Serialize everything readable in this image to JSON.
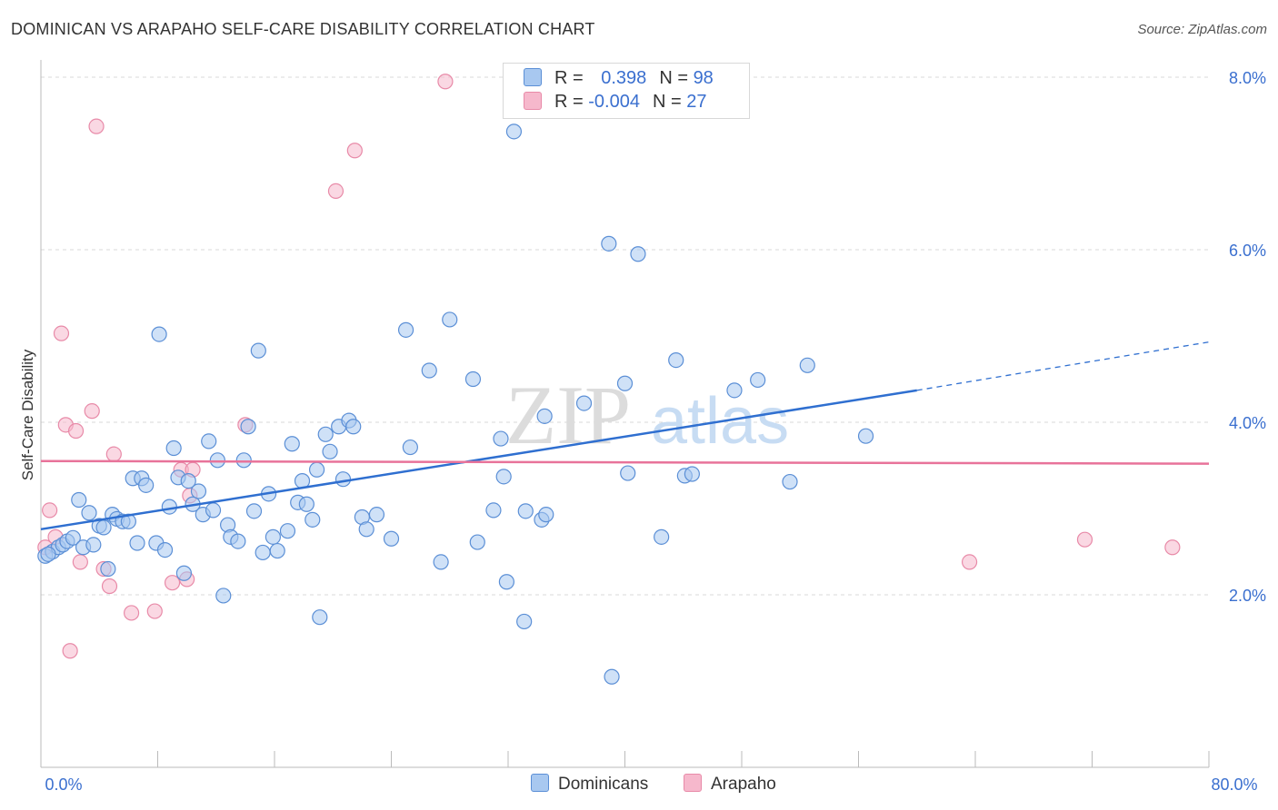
{
  "header": {
    "title": "DOMINICAN VS ARAPAHO SELF-CARE DISABILITY CORRELATION CHART",
    "source": "Source: ZipAtlas.com"
  },
  "watermark": {
    "part1": "ZIP",
    "part2": "atlas"
  },
  "legend": {
    "rows": [
      {
        "r_label": "R = ",
        "r_value": "0.398",
        "n_label": "N = ",
        "n_value": "98",
        "color": "#a8c8f0"
      },
      {
        "r_label": "R = ",
        "r_value": "-0.004",
        "n_label": "N = ",
        "n_value": "27",
        "color": "#f6b8cc"
      }
    ]
  },
  "bottom_legend": {
    "items": [
      {
        "label": "Dominicans",
        "color": "#a8c8f0"
      },
      {
        "label": "Arapaho",
        "color": "#f6b8cc"
      }
    ]
  },
  "colors": {
    "blue_fill": "#a8c8f0",
    "blue_stroke": "#5b8fd6",
    "blue_line": "#2f6fd0",
    "pink_fill": "#f6b8cc",
    "pink_stroke": "#e88aa8",
    "pink_line": "#e8739a",
    "axis_text": "#3a6fcf",
    "grid": "#d9d9d9"
  },
  "chart_data": {
    "type": "scatter",
    "title": "DOMINICAN VS ARAPAHO SELF-CARE DISABILITY CORRELATION CHART",
    "xlabel": "",
    "ylabel": "Self-Care Disability",
    "xlim": [
      0,
      80
    ],
    "ylim": [
      0,
      8.2
    ],
    "x_tick_labels": [
      "0.0%",
      "80.0%"
    ],
    "y_ticks": [
      2,
      4,
      6,
      8
    ],
    "y_tick_labels": [
      "2.0%",
      "4.0%",
      "6.0%",
      "8.0%"
    ],
    "series": [
      {
        "name": "Dominicans",
        "r": 0.398,
        "n": 98,
        "trend": {
          "x0": 0,
          "y0": 2.76,
          "x1": 60,
          "y1": 4.37,
          "dashed_to_x": 80,
          "dashed_to_y": 4.93
        },
        "points": [
          [
            0.3,
            2.45
          ],
          [
            0.8,
            2.5
          ],
          [
            1.2,
            2.55
          ],
          [
            1.5,
            2.58
          ],
          [
            1.8,
            2.62
          ],
          [
            2.2,
            2.66
          ],
          [
            2.6,
            3.1
          ],
          [
            2.9,
            2.55
          ],
          [
            3.3,
            2.95
          ],
          [
            3.6,
            2.58
          ],
          [
            4.0,
            2.8
          ],
          [
            4.3,
            2.78
          ],
          [
            4.6,
            2.3
          ],
          [
            4.9,
            2.93
          ],
          [
            5.2,
            2.88
          ],
          [
            5.6,
            2.85
          ],
          [
            6.0,
            2.85
          ],
          [
            6.3,
            3.35
          ],
          [
            6.6,
            2.6
          ],
          [
            6.9,
            3.35
          ],
          [
            7.2,
            3.27
          ],
          [
            7.9,
            2.6
          ],
          [
            8.1,
            5.02
          ],
          [
            8.5,
            2.52
          ],
          [
            8.8,
            3.02
          ],
          [
            9.1,
            3.7
          ],
          [
            9.4,
            3.36
          ],
          [
            9.8,
            2.25
          ],
          [
            10.1,
            3.32
          ],
          [
            10.4,
            3.05
          ],
          [
            10.8,
            3.2
          ],
          [
            11.1,
            2.93
          ],
          [
            11.5,
            3.78
          ],
          [
            11.8,
            2.98
          ],
          [
            12.1,
            3.56
          ],
          [
            12.5,
            1.99
          ],
          [
            12.8,
            2.81
          ],
          [
            13.0,
            2.67
          ],
          [
            13.5,
            2.62
          ],
          [
            13.9,
            3.56
          ],
          [
            14.2,
            3.95
          ],
          [
            14.6,
            2.97
          ],
          [
            14.9,
            4.83
          ],
          [
            15.2,
            2.49
          ],
          [
            15.6,
            3.17
          ],
          [
            15.9,
            2.67
          ],
          [
            16.2,
            2.51
          ],
          [
            16.9,
            2.74
          ],
          [
            17.2,
            3.75
          ],
          [
            17.6,
            3.07
          ],
          [
            17.9,
            3.32
          ],
          [
            18.2,
            3.05
          ],
          [
            18.6,
            2.87
          ],
          [
            18.9,
            3.45
          ],
          [
            19.1,
            1.74
          ],
          [
            19.5,
            3.86
          ],
          [
            19.8,
            3.66
          ],
          [
            20.4,
            3.95
          ],
          [
            20.7,
            3.34
          ],
          [
            21.1,
            4.02
          ],
          [
            21.4,
            3.95
          ],
          [
            22.0,
            2.9
          ],
          [
            22.3,
            2.76
          ],
          [
            23.0,
            2.93
          ],
          [
            24.0,
            2.65
          ],
          [
            25.0,
            5.07
          ],
          [
            25.3,
            3.71
          ],
          [
            26.6,
            4.6
          ],
          [
            27.4,
            2.38
          ],
          [
            28.0,
            5.19
          ],
          [
            29.6,
            4.5
          ],
          [
            29.9,
            2.61
          ],
          [
            31.0,
            2.98
          ],
          [
            31.5,
            3.81
          ],
          [
            31.7,
            3.37
          ],
          [
            31.9,
            2.15
          ],
          [
            32.4,
            7.37
          ],
          [
            33.1,
            1.69
          ],
          [
            33.2,
            2.97
          ],
          [
            34.3,
            2.87
          ],
          [
            34.5,
            4.07
          ],
          [
            34.6,
            2.93
          ],
          [
            37.2,
            4.22
          ],
          [
            38.9,
            6.07
          ],
          [
            39.1,
            1.05
          ],
          [
            40.0,
            4.45
          ],
          [
            40.2,
            3.41
          ],
          [
            40.9,
            5.95
          ],
          [
            42.5,
            2.67
          ],
          [
            43.5,
            4.72
          ],
          [
            44.1,
            3.38
          ],
          [
            44.6,
            3.4
          ],
          [
            47.5,
            4.37
          ],
          [
            49.1,
            4.49
          ],
          [
            51.3,
            3.31
          ],
          [
            52.5,
            4.66
          ],
          [
            56.5,
            3.84
          ],
          [
            0.5,
            2.47
          ]
        ]
      },
      {
        "name": "Arapaho",
        "r": -0.004,
        "n": 27,
        "trend": {
          "x0": 0,
          "y0": 3.55,
          "x1": 80,
          "y1": 3.52
        },
        "points": [
          [
            0.3,
            2.55
          ],
          [
            0.6,
            2.98
          ],
          [
            1.0,
            2.67
          ],
          [
            1.4,
            5.03
          ],
          [
            1.7,
            3.97
          ],
          [
            2.4,
            3.9
          ],
          [
            2.7,
            2.38
          ],
          [
            3.5,
            4.13
          ],
          [
            3.8,
            7.43
          ],
          [
            4.3,
            2.3
          ],
          [
            4.7,
            2.1
          ],
          [
            5.0,
            3.63
          ],
          [
            6.2,
            1.79
          ],
          [
            2.0,
            1.35
          ],
          [
            7.8,
            1.81
          ],
          [
            9.0,
            2.14
          ],
          [
            9.6,
            3.45
          ],
          [
            10.0,
            2.18
          ],
          [
            10.2,
            3.15
          ],
          [
            10.4,
            3.45
          ],
          [
            14.0,
            3.97
          ],
          [
            20.2,
            6.68
          ],
          [
            21.5,
            7.15
          ],
          [
            27.7,
            7.95
          ],
          [
            63.6,
            2.38
          ],
          [
            71.5,
            2.64
          ],
          [
            77.5,
            2.55
          ]
        ]
      }
    ]
  }
}
